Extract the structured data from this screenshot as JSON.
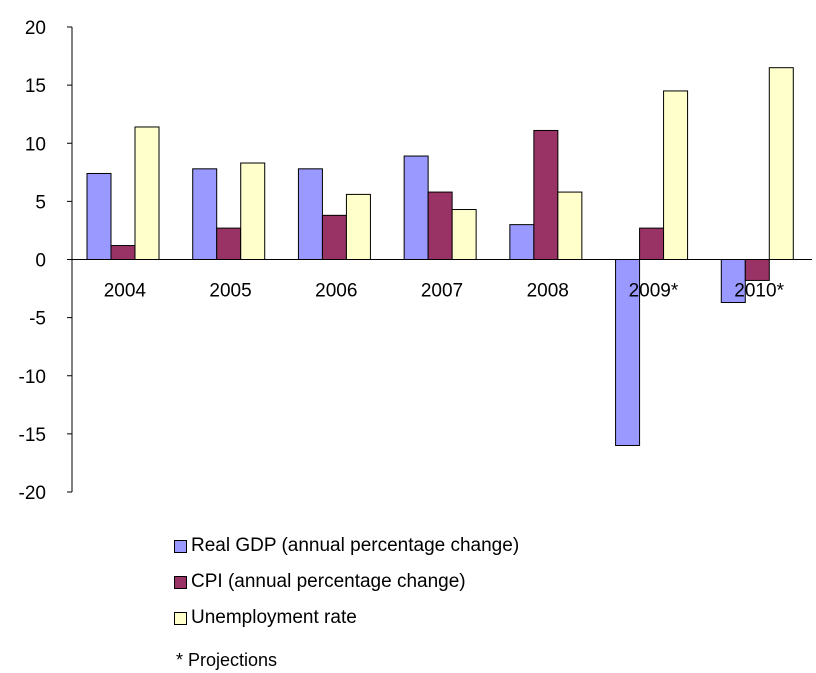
{
  "chart_data": {
    "type": "bar",
    "categories": [
      "2004",
      "2005",
      "2006",
      "2007",
      "2008",
      "2009*",
      "2010*"
    ],
    "series": [
      {
        "name": "Real GDP (annual percentage change)",
        "color": "#9999ff",
        "values": [
          7.4,
          7.8,
          7.8,
          8.9,
          3.0,
          -16.0,
          -3.7
        ]
      },
      {
        "name": "CPI (annual percentage change)",
        "color": "#993366",
        "values": [
          1.2,
          2.7,
          3.8,
          5.8,
          11.1,
          2.7,
          -1.8
        ]
      },
      {
        "name": "Unemployment rate",
        "color": "#ffffcc",
        "values": [
          11.4,
          8.3,
          5.6,
          4.3,
          5.8,
          14.5,
          16.5
        ]
      }
    ],
    "ylim": [
      -20,
      20
    ],
    "yticks": [
      "20",
      "15",
      "10",
      "5",
      "0",
      "-5",
      "-10",
      "-15",
      "-20"
    ],
    "legend_position": "bottom",
    "grid": false
  },
  "footnote": "* Projections"
}
